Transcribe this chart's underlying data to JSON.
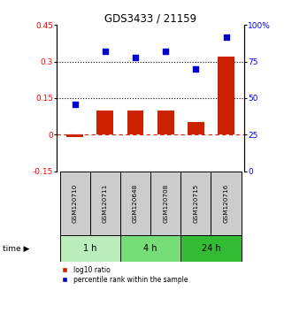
{
  "title": "GDS3433 / 21159",
  "samples": [
    "GSM120710",
    "GSM120711",
    "GSM120648",
    "GSM120708",
    "GSM120715",
    "GSM120716"
  ],
  "log10_ratio": [
    -0.01,
    0.1,
    0.1,
    0.1,
    0.05,
    0.32
  ],
  "percentile_rank": [
    46,
    82,
    78,
    82,
    70,
    92
  ],
  "left_ylim": [
    -0.15,
    0.45
  ],
  "right_ylim": [
    0,
    100
  ],
  "left_yticks": [
    -0.15,
    0,
    0.15,
    0.3,
    0.45
  ],
  "right_yticks": [
    0,
    25,
    50,
    75,
    100
  ],
  "right_yticklabels": [
    "0",
    "25",
    "50",
    "75",
    "100%"
  ],
  "hlines_dotted": [
    0.15,
    0.3
  ],
  "hline_dashed_red": 0,
  "bar_color": "#cc2200",
  "square_color": "#0000cc",
  "time_groups": [
    {
      "label": "1 h",
      "indices": [
        0,
        1
      ],
      "color": "#bbeebb"
    },
    {
      "label": "4 h",
      "indices": [
        2,
        3
      ],
      "color": "#77dd77"
    },
    {
      "label": "24 h",
      "indices": [
        4,
        5
      ],
      "color": "#33bb33"
    }
  ],
  "time_arrow_label": "time",
  "legend_bar_label": "log10 ratio",
  "legend_square_label": "percentile rank within the sample",
  "sample_box_color": "#cccccc",
  "background_color": "#ffffff"
}
